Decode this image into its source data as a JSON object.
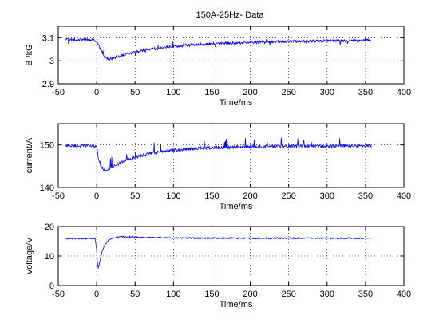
{
  "figure": {
    "title": "150A-25Hz- Data"
  },
  "chart_data": [
    {
      "type": "line",
      "title": "150A-25Hz- Data",
      "xlabel": "Time/ms",
      "ylabel": "B /kG",
      "xlim": [
        -50,
        400
      ],
      "ylim": [
        2.9,
        3.15
      ],
      "xticks": [
        -50,
        0,
        50,
        100,
        150,
        200,
        250,
        300,
        350,
        400
      ],
      "yticks": [
        2.9,
        3.0,
        3.1
      ],
      "ytick_labels": [
        "2.9",
        "3",
        "3.1"
      ],
      "grid": true,
      "color": "#0000ff",
      "series": [
        {
          "x": [
            -40,
            -20,
            -5,
            0,
            5,
            10,
            15,
            20,
            30,
            40,
            60,
            80,
            100,
            120,
            150,
            200,
            250,
            300,
            358
          ],
          "values": [
            3.092,
            3.092,
            3.09,
            3.085,
            3.05,
            3.018,
            3.008,
            3.01,
            3.02,
            3.03,
            3.045,
            3.055,
            3.063,
            3.068,
            3.074,
            3.08,
            3.084,
            3.087,
            3.089
          ]
        }
      ]
    },
    {
      "type": "line",
      "title": "",
      "xlabel": "Time/ms",
      "ylabel": "current/A",
      "xlim": [
        -50,
        400
      ],
      "ylim": [
        140,
        155
      ],
      "xticks": [
        -50,
        0,
        50,
        100,
        150,
        200,
        250,
        300,
        350,
        400
      ],
      "yticks": [
        140,
        150
      ],
      "ytick_labels": [
        "140",
        "150"
      ],
      "grid": true,
      "color": "#0000ff",
      "series": [
        {
          "x": [
            -40,
            -20,
            -5,
            0,
            3,
            6,
            10,
            15,
            20,
            30,
            40,
            60,
            80,
            100,
            130,
            160,
            200,
            250,
            300,
            358
          ],
          "values": [
            149.8,
            149.8,
            149.8,
            149.4,
            146.5,
            144.8,
            144.0,
            144.2,
            144.8,
            145.7,
            146.5,
            147.6,
            148.3,
            148.8,
            149.2,
            149.4,
            149.6,
            149.7,
            149.7,
            149.8
          ]
        }
      ]
    },
    {
      "type": "line",
      "title": "",
      "xlabel": "Time/ms",
      "ylabel": "Voltage/V",
      "xlim": [
        -50,
        400
      ],
      "ylim": [
        0,
        20
      ],
      "xticks": [
        -50,
        0,
        50,
        100,
        150,
        200,
        250,
        300,
        350,
        400
      ],
      "yticks": [
        0,
        10,
        20
      ],
      "ytick_labels": [
        "0",
        "10",
        "20"
      ],
      "grid": true,
      "color": "#0000ff",
      "series": [
        {
          "x": [
            -40,
            -20,
            -2,
            0,
            1,
            2,
            4,
            7,
            10,
            15,
            20,
            30,
            40,
            60,
            100,
            200,
            300,
            358
          ],
          "values": [
            15.9,
            15.9,
            15.9,
            12.0,
            7.5,
            5.5,
            8.0,
            11.5,
            13.5,
            15.2,
            16.0,
            16.6,
            16.5,
            16.3,
            16.1,
            16.0,
            16.0,
            16.0
          ]
        }
      ]
    }
  ]
}
